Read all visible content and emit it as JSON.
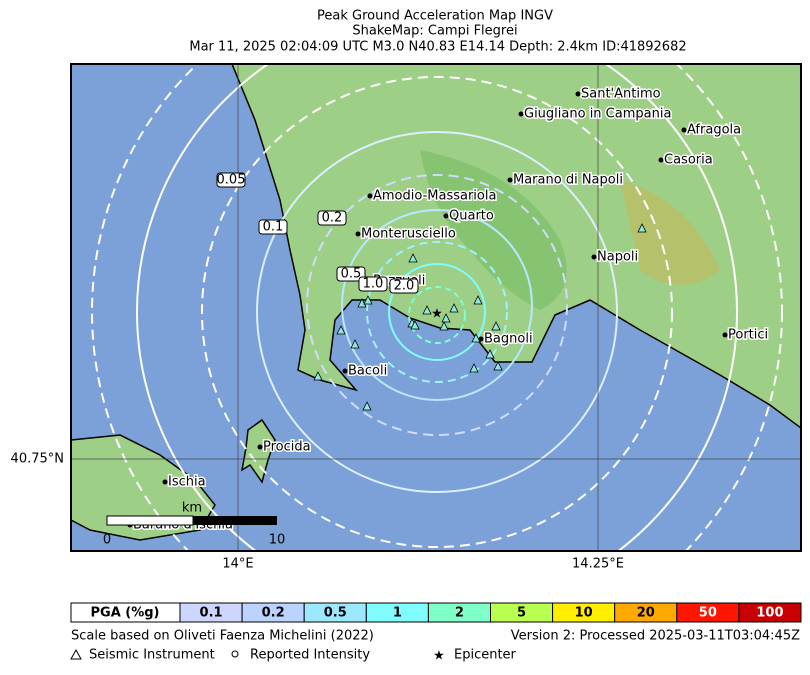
{
  "header": {
    "title": "Peak Ground Acceleration Map INGV",
    "subtitle": "ShakeMap: Campi Flegrei",
    "event": "Mar 11, 2025 02:04:09 UTC M3.0 N40.83 E14.14 Depth: 2.4km ID:41892682"
  },
  "map": {
    "places": [
      "Sant'Antimo",
      "Giugliano in Campania",
      "Afragola",
      "Casoria",
      "Marano di Napoli",
      "Amodio-Massariola",
      "Quarto",
      "Monterusciello",
      "Napoli",
      "Pozzuoli",
      "Bagnoli",
      "Portici",
      "Bacoli",
      "Procida",
      "Ischia",
      "Barano d'Ischia"
    ],
    "contour_labels": [
      "0.05",
      "0.1",
      "0.2",
      "0.5",
      "1.0",
      "2.0"
    ],
    "lat_label": "40.75°N",
    "lon_labels": [
      "14°E",
      "14.25°E"
    ],
    "scale_bar": {
      "unit": "km",
      "ticks": [
        "0",
        "10"
      ]
    }
  },
  "legend": {
    "title": "PGA (%g)",
    "levels": [
      {
        "label": "0.1",
        "color": "#ccd6ff"
      },
      {
        "label": "0.2",
        "color": "#bcd3ff"
      },
      {
        "label": "0.5",
        "color": "#9ce9ff"
      },
      {
        "label": "1",
        "color": "#80fcff"
      },
      {
        "label": "2",
        "color": "#7fffc8"
      },
      {
        "label": "5",
        "color": "#b8ff50"
      },
      {
        "label": "10",
        "color": "#ffee00"
      },
      {
        "label": "20",
        "color": "#ffa800"
      },
      {
        "label": "50",
        "color": "#ff1500"
      },
      {
        "label": "100",
        "color": "#c80000"
      }
    ]
  },
  "footer": {
    "left": "Scale based on Oliveti Faenza Michelini (2022)",
    "right": "Version 2: Processed 2025-03-11T03:04:45Z",
    "symbols": [
      "Seismic Instrument",
      "Reported Intensity",
      "Epicenter"
    ]
  }
}
